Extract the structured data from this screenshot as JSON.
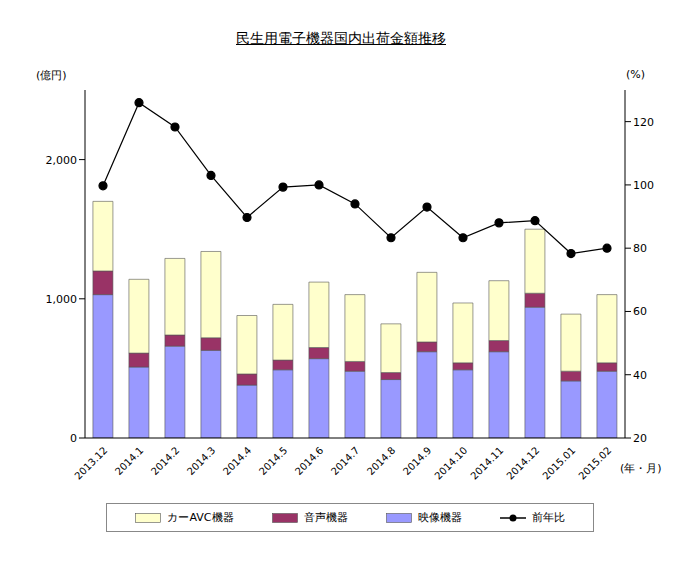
{
  "chart_data": {
    "type": "bar",
    "title": "民生用電子機器国内出荷金額推移",
    "y_label": "(億円)",
    "y2_label": "(%)",
    "x_label": "(年・月)",
    "stacked": true,
    "categories": [
      "2013.12",
      "2014.1",
      "2014.2",
      "2014.3",
      "2014.4",
      "2014.5",
      "2014.6",
      "2014.7",
      "2014.8",
      "2014.9",
      "2014.10",
      "2014.11",
      "2014.12",
      "2015.01",
      "2015.02"
    ],
    "ylim": [
      0,
      2500
    ],
    "yticks": [
      0,
      {
        "value": 1000,
        "label": "1,000"
      },
      {
        "value": 2000,
        "label": "2,000"
      }
    ],
    "y2lim": [
      20,
      130
    ],
    "y2ticks": [
      20,
      40,
      60,
      80,
      100,
      120
    ],
    "legend": "bottom",
    "series": [
      {
        "name": "カーAVC機器",
        "type": "bar",
        "color": "#ffffcc",
        "values": [
          500,
          530,
          550,
          620,
          420,
          400,
          470,
          480,
          350,
          500,
          430,
          430,
          460,
          410,
          490
        ]
      },
      {
        "name": "音声機器",
        "type": "bar",
        "color": "#993366",
        "values": [
          170,
          100,
          80,
          90,
          80,
          70,
          80,
          70,
          50,
          70,
          50,
          80,
          100,
          70,
          60
        ]
      },
      {
        "name": "映像機器",
        "type": "bar",
        "color": "#9999ff",
        "values": [
          1030,
          510,
          660,
          630,
          380,
          490,
          570,
          480,
          420,
          620,
          490,
          620,
          940,
          410,
          480
        ]
      },
      {
        "name": "前年比",
        "type": "line",
        "axis": "y2",
        "color": "#000000",
        "marker": "circle",
        "values": [
          99.7,
          126,
          118.3,
          103,
          89.7,
          99.3,
          100,
          94,
          83.3,
          93,
          83.3,
          88,
          88.7,
          78.3,
          80
        ]
      }
    ]
  }
}
